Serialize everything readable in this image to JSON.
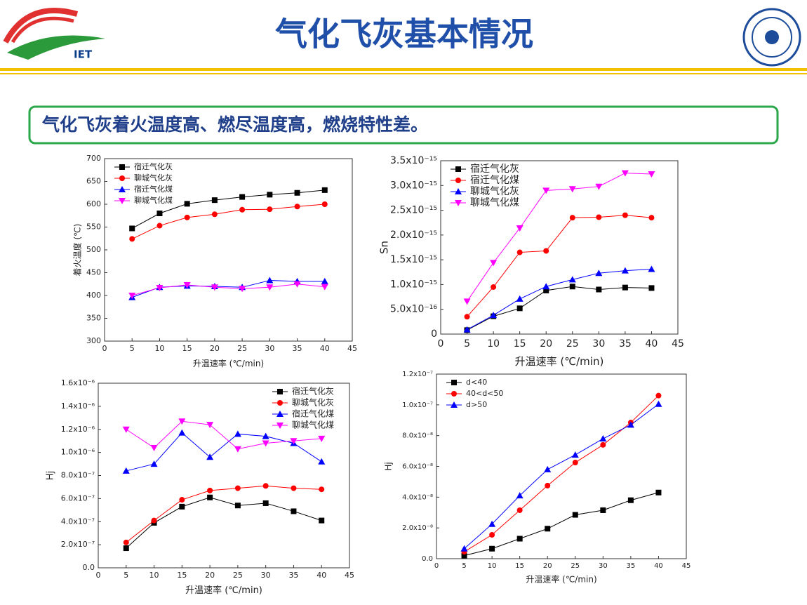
{
  "header": {
    "title": "气化飞灰基本情况",
    "logo_text": "IET",
    "banner": "气化飞灰着火温度高、燃尽温度高，燃烧特性差。"
  },
  "chart_data": [
    {
      "type": "line",
      "xlabel": "升温速率 (℃/min)",
      "ylabel": "着火温度 (℃)",
      "x": [
        5,
        10,
        15,
        20,
        25,
        30,
        35,
        40
      ],
      "xlim": [
        0,
        45
      ],
      "xticks": [
        0,
        5,
        10,
        15,
        20,
        25,
        30,
        35,
        40,
        45
      ],
      "ylim": [
        300,
        700
      ],
      "yticks": [
        300,
        350,
        400,
        450,
        500,
        550,
        600,
        650,
        700
      ],
      "legend": "upper left",
      "series": [
        {
          "name": "宿迁气化灰",
          "color": "#000000",
          "marker": "square",
          "values": [
            547,
            580,
            601,
            609,
            616,
            621,
            625,
            631
          ]
        },
        {
          "name": "聊城气化灰",
          "color": "#ff0000",
          "marker": "circle",
          "values": [
            524,
            553,
            571,
            578,
            588,
            589,
            595,
            600
          ]
        },
        {
          "name": "宿迁气化煤",
          "color": "#0000ff",
          "marker": "triangle",
          "values": [
            396,
            418,
            421,
            420,
            418,
            433,
            431,
            431
          ]
        },
        {
          "name": "聊城气化煤",
          "color": "#ff00ff",
          "marker": "triangle-down",
          "values": [
            400,
            417,
            423,
            418,
            415,
            418,
            425,
            419
          ]
        }
      ]
    },
    {
      "type": "line",
      "xlabel": "升温速率 (℃/min)",
      "ylabel": "Sn",
      "x": [
        5,
        10,
        15,
        20,
        25,
        30,
        35,
        40
      ],
      "xlim": [
        0,
        45
      ],
      "xticks": [
        0,
        5,
        10,
        15,
        20,
        25,
        30,
        35,
        40,
        45
      ],
      "ylim": [
        0,
        3.5e-15
      ],
      "yticks": [
        0,
        {
          "value": 5e-16,
          "label": "5.0x10⁻¹⁶"
        },
        {
          "value": 1e-15,
          "label": "1.0x10⁻¹⁵"
        },
        {
          "value": 1.5e-15,
          "label": "1.5x10⁻¹⁵"
        },
        {
          "value": 2e-15,
          "label": "2.0x10⁻¹⁵"
        },
        {
          "value": 2.5e-15,
          "label": "2.5x10⁻¹⁵"
        },
        {
          "value": 3e-15,
          "label": "3.0x10⁻¹⁵"
        },
        {
          "value": 3.5e-15,
          "label": "3.5x10⁻¹⁵"
        }
      ],
      "legend": "upper left",
      "series": [
        {
          "name": "宿迁气化灰",
          "color": "#000000",
          "marker": "square",
          "values": [
            8e-17,
            3.6e-16,
            5.2e-16,
            8.8e-16,
            9.6e-16,
            9e-16,
            9.4e-16,
            9.3e-16
          ]
        },
        {
          "name": "宿迁气化煤",
          "color": "#ff0000",
          "marker": "circle",
          "values": [
            3.5e-16,
            9.5e-16,
            1.65e-15,
            1.68e-15,
            2.35e-15,
            2.36e-15,
            2.4e-15,
            2.35e-15
          ]
        },
        {
          "name": "聊城气化灰",
          "color": "#0000ff",
          "marker": "triangle",
          "values": [
            9e-17,
            3.8e-16,
            7.1e-16,
            9.6e-16,
            1.1e-15,
            1.23e-15,
            1.28e-15,
            1.31e-15
          ]
        },
        {
          "name": "聊城气化煤",
          "color": "#ff00ff",
          "marker": "triangle-down",
          "values": [
            6.6e-16,
            1.44e-15,
            2.14e-15,
            2.9e-15,
            2.93e-15,
            2.98e-15,
            3.25e-15,
            3.23e-15
          ]
        }
      ]
    },
    {
      "type": "line",
      "xlabel": "升温速率 (℃/min)",
      "ylabel": "Hj",
      "x": [
        5,
        10,
        15,
        20,
        25,
        30,
        35,
        40
      ],
      "xlim": [
        0,
        45
      ],
      "xticks": [
        0,
        5,
        10,
        15,
        20,
        25,
        30,
        35,
        40,
        45
      ],
      "ylim": [
        0,
        1.6e-06
      ],
      "yticks": [
        {
          "value": 0,
          "label": "0.0"
        },
        {
          "value": 2e-07,
          "label": "2.0x10⁻⁷"
        },
        {
          "value": 4e-07,
          "label": "4.0x10⁻⁷"
        },
        {
          "value": 6e-07,
          "label": "6.0x10⁻⁷"
        },
        {
          "value": 8e-07,
          "label": "8.0x10⁻⁷"
        },
        {
          "value": 1e-06,
          "label": "1.0x10⁻⁶"
        },
        {
          "value": 1.2e-06,
          "label": "1.2x10⁻⁶"
        },
        {
          "value": 1.4e-06,
          "label": "1.4x10⁻⁶"
        },
        {
          "value": 1.6e-06,
          "label": "1.6x10⁻⁶"
        }
      ],
      "legend": "upper right",
      "series": [
        {
          "name": "宿迁气化灰",
          "color": "#000000",
          "marker": "square",
          "values": [
            1.7e-07,
            3.9e-07,
            5.3e-07,
            6.1e-07,
            5.4e-07,
            5.6e-07,
            4.9e-07,
            4.1e-07
          ]
        },
        {
          "name": "聊城气化灰",
          "color": "#ff0000",
          "marker": "circle",
          "values": [
            2.2e-07,
            4.1e-07,
            5.9e-07,
            6.7e-07,
            6.9e-07,
            7.1e-07,
            6.9e-07,
            6.8e-07
          ]
        },
        {
          "name": "宿迁气化煤",
          "color": "#0000ff",
          "marker": "triangle",
          "values": [
            8.4e-07,
            9e-07,
            1.17e-06,
            9.6e-07,
            1.16e-06,
            1.14e-06,
            1.08e-06,
            9.2e-07
          ]
        },
        {
          "name": "聊城气化煤",
          "color": "#ff00ff",
          "marker": "triangle-down",
          "values": [
            1.2e-06,
            1.04e-06,
            1.27e-06,
            1.24e-06,
            1.03e-06,
            1.08e-06,
            1.1e-06,
            1.12e-06
          ]
        }
      ]
    },
    {
      "type": "line",
      "xlabel": "升温速率 (℃/min)",
      "ylabel": "Hj",
      "x": [
        5,
        10,
        15,
        20,
        25,
        30,
        35,
        40
      ],
      "xlim": [
        0,
        45
      ],
      "xticks": [
        0,
        5,
        10,
        15,
        20,
        25,
        30,
        35,
        40,
        45
      ],
      "ylim": [
        0,
        1.2e-07
      ],
      "yticks": [
        {
          "value": 0,
          "label": "0.0"
        },
        {
          "value": 2e-08,
          "label": "2.0x10⁻⁸"
        },
        {
          "value": 4e-08,
          "label": "4.0x10⁻⁸"
        },
        {
          "value": 6e-08,
          "label": "6.0x10⁻⁸"
        },
        {
          "value": 8e-08,
          "label": "8.0x10⁻⁸"
        },
        {
          "value": 1e-07,
          "label": "1.0x10⁻⁷"
        },
        {
          "value": 1.2e-07,
          "label": "1.2x10⁻⁷"
        }
      ],
      "legend": "upper left",
      "series": [
        {
          "name": "d<40",
          "color": "#000000",
          "marker": "square",
          "values": [
            2e-09,
            6.5e-09,
            1.3e-08,
            1.95e-08,
            2.85e-08,
            3.15e-08,
            3.8e-08,
            4.3e-08
          ]
        },
        {
          "name": "40<d<50",
          "color": "#ff0000",
          "marker": "circle",
          "values": [
            4.5e-09,
            1.55e-08,
            3.15e-08,
            4.75e-08,
            6.25e-08,
            7.4e-08,
            8.85e-08,
            1.06e-07
          ]
        },
        {
          "name": "d>50",
          "color": "#0000ff",
          "marker": "triangle",
          "values": [
            6.5e-09,
            2.25e-08,
            4.1e-08,
            5.8e-08,
            6.75e-08,
            7.8e-08,
            8.7e-08,
            1.005e-07
          ]
        }
      ]
    }
  ]
}
